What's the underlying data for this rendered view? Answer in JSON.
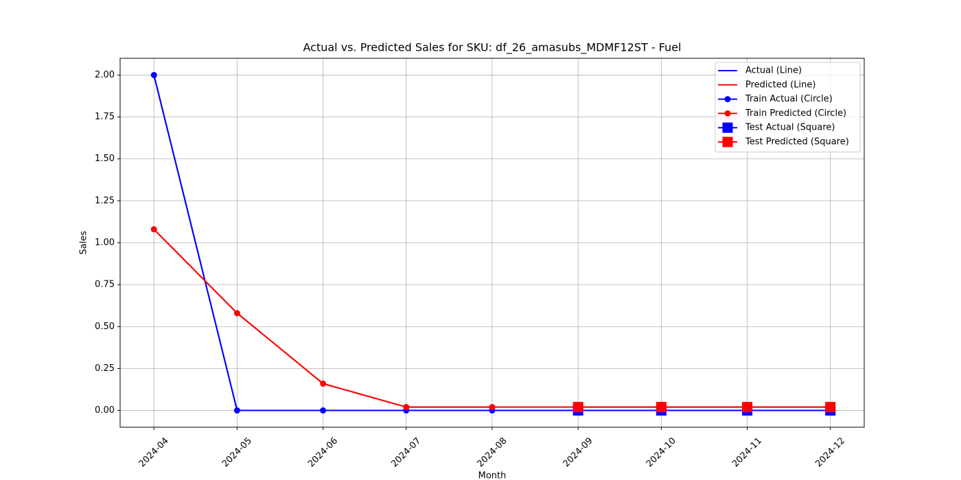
{
  "chart_data": {
    "type": "line",
    "title": "Actual vs. Predicted Sales for SKU: df_26_amasubs_MDMF12ST - Fuel",
    "x_label": "Month",
    "y_label": "Sales",
    "x": [
      "2024-04",
      "2024-05",
      "2024-06",
      "2024-07",
      "2024-08",
      "2024-09",
      "2024-10",
      "2024-11",
      "2024-12"
    ],
    "xticks": [
      "2024-04",
      "2024-05",
      "2024-06",
      "2024-07",
      "2024-08",
      "2024-09",
      "2024-10",
      "2024-11",
      "2024-12"
    ],
    "ylim": [
      -0.1,
      2.1
    ],
    "yticks": [
      {
        "value": 0,
        "label": "0.00"
      },
      {
        "value": 0.25,
        "label": "0.25"
      },
      {
        "value": 0.5,
        "label": "0.50"
      },
      {
        "value": 0.75,
        "label": "0.75"
      },
      {
        "value": 1,
        "label": "1.00"
      },
      {
        "value": 1.25,
        "label": "1.25"
      },
      {
        "value": 1.5,
        "label": "1.50"
      },
      {
        "value": 1.75,
        "label": "1.75"
      },
      {
        "value": 2,
        "label": "2.00"
      }
    ],
    "grid": true,
    "legend": "upper right",
    "series": [
      {
        "name": "Actual (Line)",
        "color": "#0000ff",
        "marker": "none",
        "values": [
          2,
          0,
          0,
          0,
          0,
          0,
          0,
          0,
          0
        ]
      },
      {
        "name": "Predicted (Line)",
        "color": "#ff0000",
        "marker": "none",
        "values": [
          1.08,
          0.58,
          0.16,
          0.02,
          0.02,
          0.02,
          0.02,
          0.02,
          0.02
        ]
      },
      {
        "name": "Train Actual (Circle)",
        "color": "#0000ff",
        "marker": "circle",
        "values": [
          2,
          0,
          0,
          0,
          0,
          null,
          null,
          null,
          null
        ]
      },
      {
        "name": "Train Predicted (Circle)",
        "color": "#ff0000",
        "marker": "circle",
        "values": [
          1.08,
          0.58,
          0.16,
          0.02,
          0.02,
          null,
          null,
          null,
          null
        ]
      },
      {
        "name": "Test Actual (Square)",
        "color": "#0000ff",
        "marker": "square",
        "values": [
          null,
          null,
          null,
          null,
          null,
          0,
          0,
          0,
          0
        ]
      },
      {
        "name": "Test Predicted (Square)",
        "color": "#ff0000",
        "marker": "square",
        "values": [
          null,
          null,
          null,
          null,
          null,
          0.02,
          0.02,
          0.02,
          0.02
        ]
      }
    ]
  }
}
